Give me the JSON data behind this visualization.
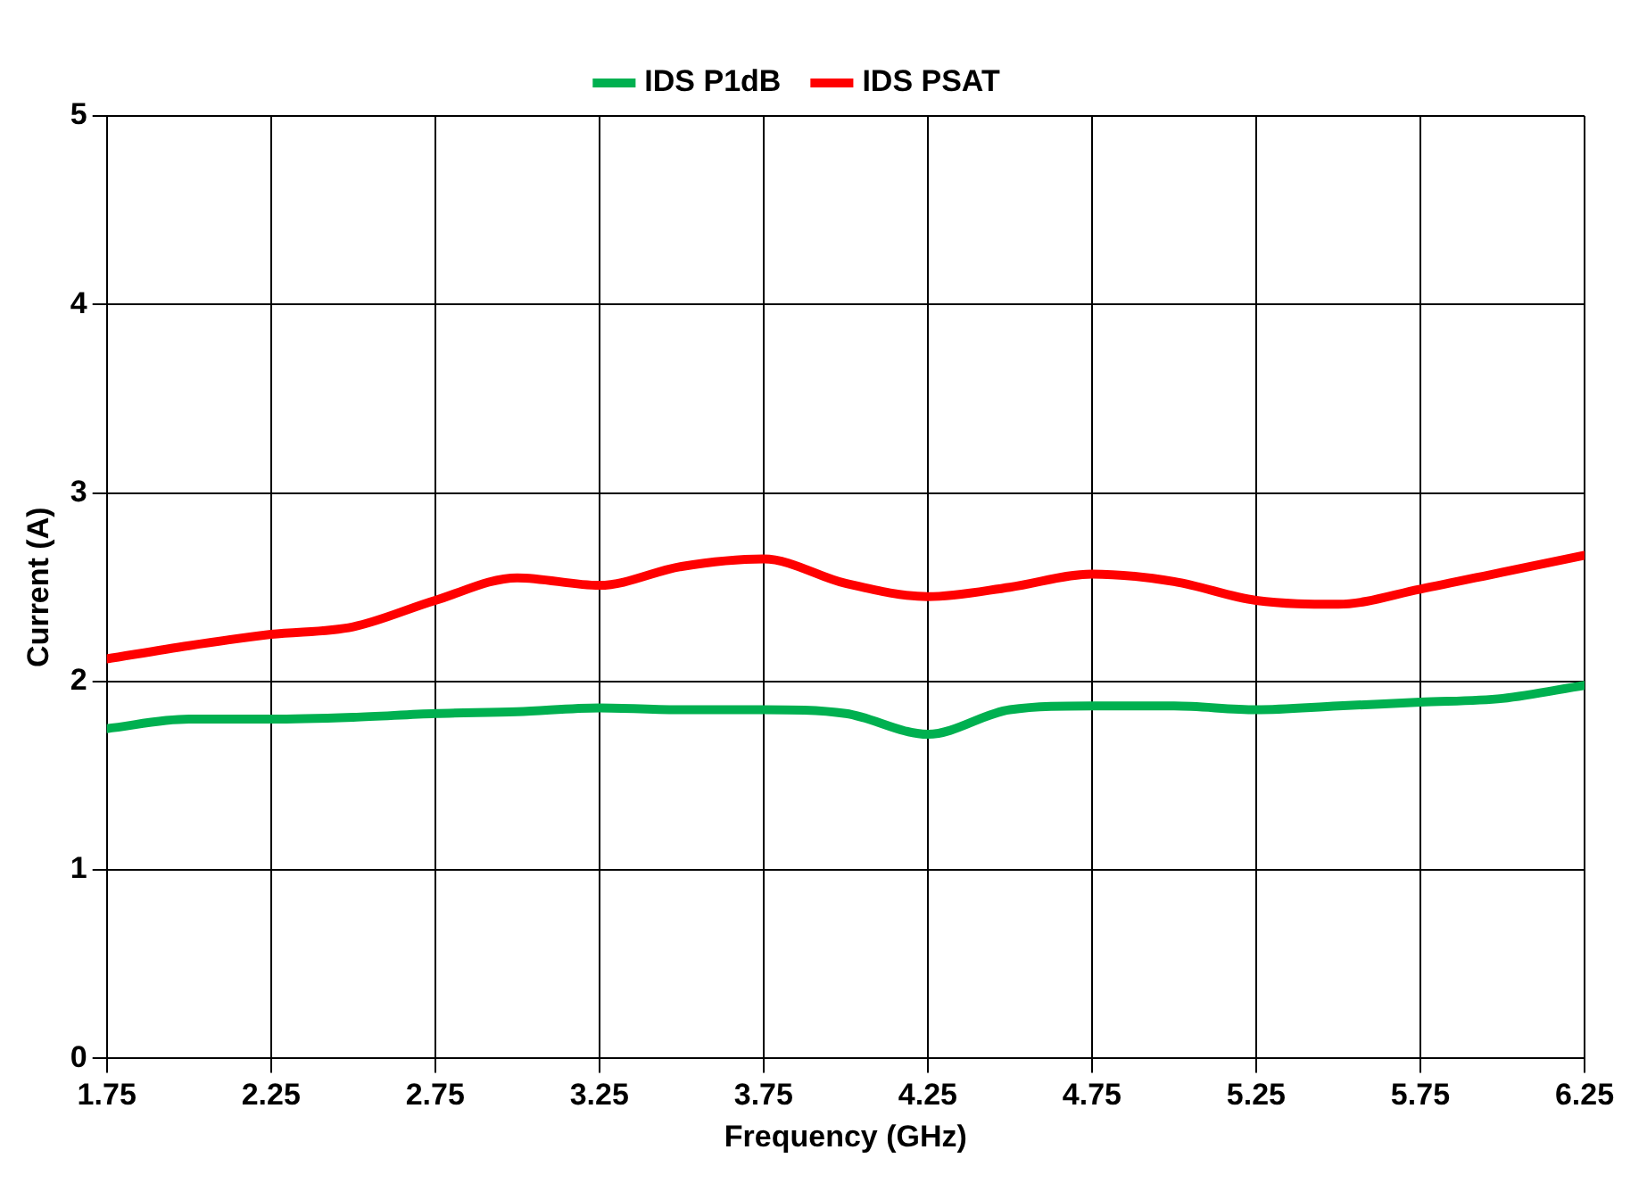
{
  "chart_data": {
    "type": "line",
    "xlabel": "Frequency (GHz)",
    "ylabel": "Current (A)",
    "xlim": [
      1.75,
      6.25
    ],
    "xticks": [
      {
        "value": 1.75,
        "label": "1.75"
      },
      {
        "value": 2.25,
        "label": "2.25"
      },
      {
        "value": 2.75,
        "label": "2.75"
      },
      {
        "value": 3.25,
        "label": "3.25"
      },
      {
        "value": 3.75,
        "label": "3.75"
      },
      {
        "value": 4.25,
        "label": "4.25"
      },
      {
        "value": 4.75,
        "label": "4.75"
      },
      {
        "value": 5.25,
        "label": "5.25"
      },
      {
        "value": 5.75,
        "label": "5.75"
      },
      {
        "value": 6.25,
        "label": "6.25"
      }
    ],
    "ylim": [
      0,
      5
    ],
    "yticks": [
      0,
      1,
      2,
      3,
      4,
      5
    ],
    "grid": true,
    "legend": "top",
    "marker": "none",
    "line_style": "solid",
    "x": [
      1.75,
      2.0,
      2.25,
      2.5,
      2.75,
      3.0,
      3.25,
      3.5,
      3.75,
      4.0,
      4.25,
      4.5,
      4.75,
      5.0,
      5.25,
      5.5,
      5.75,
      6.0,
      6.25
    ],
    "series": [
      {
        "name": "IDS P1dB",
        "color": "#00b050",
        "values": [
          1.75,
          1.8,
          1.8,
          1.81,
          1.83,
          1.84,
          1.86,
          1.85,
          1.85,
          1.83,
          1.72,
          1.85,
          1.87,
          1.87,
          1.85,
          1.87,
          1.89,
          1.91,
          1.98
        ]
      },
      {
        "name": "IDS PSAT",
        "color": "#ff0000",
        "values": [
          2.12,
          2.19,
          2.25,
          2.29,
          2.43,
          2.55,
          2.51,
          2.61,
          2.65,
          2.52,
          2.45,
          2.5,
          2.57,
          2.53,
          2.43,
          2.41,
          2.49,
          2.58,
          2.67
        ]
      }
    ]
  }
}
